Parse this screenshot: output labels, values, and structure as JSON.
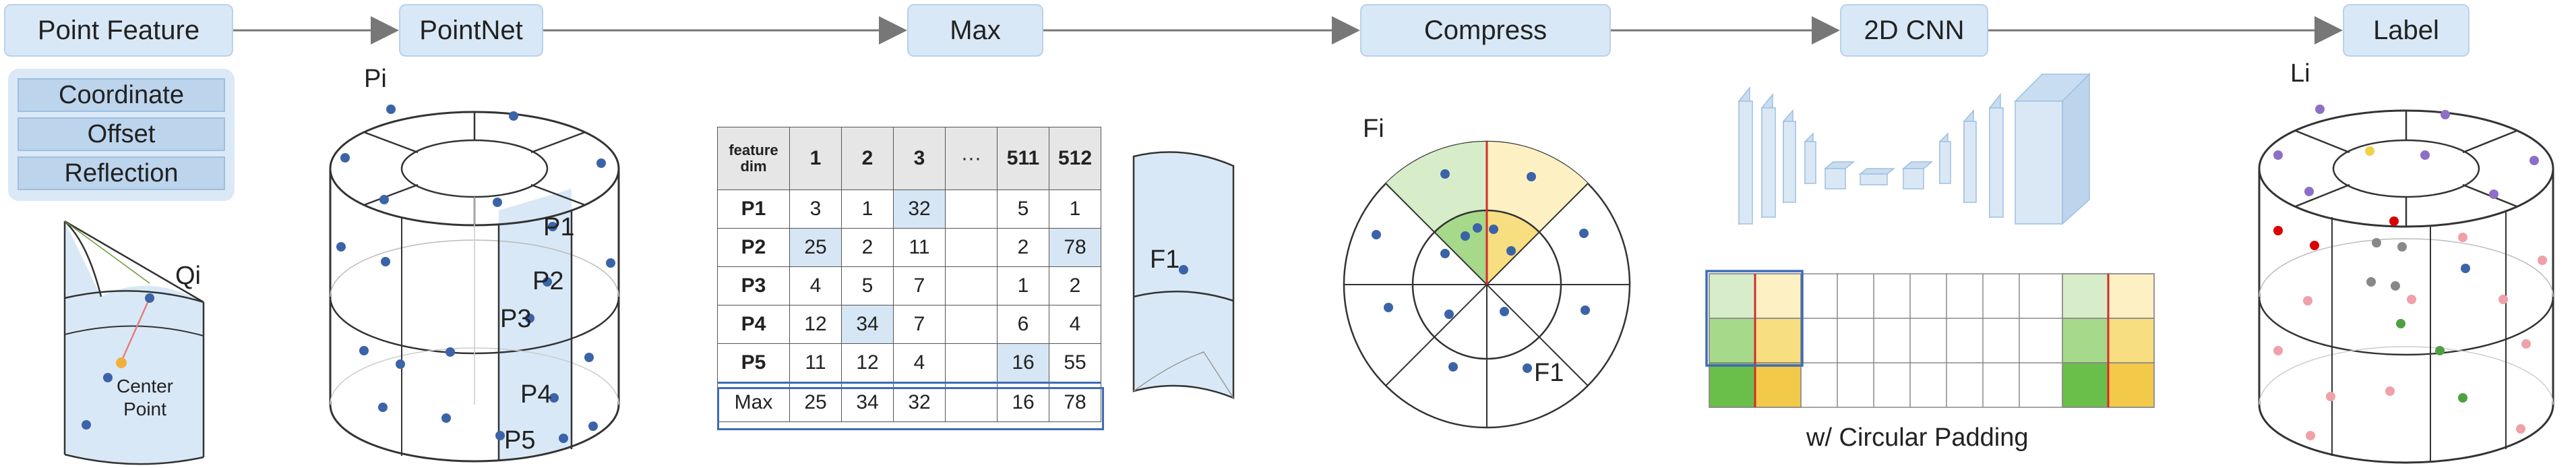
{
  "steps": {
    "point_feature": "Point Feature",
    "pointnet": "PointNet",
    "max": "Max",
    "compress": "Compress",
    "cnn2d": "2D CNN",
    "label": "Label"
  },
  "features": [
    "Coordinate",
    "Offset",
    "Reflection"
  ],
  "labels": {
    "q": "Qi",
    "center_point": "Center Point",
    "p_i": "Pi",
    "p1": "P1",
    "p2": "P2",
    "p3": "P3",
    "p4": "P4",
    "p5": "P5",
    "f1_a": "F1",
    "f_i": "Fi",
    "f1_b": "F1",
    "l_i": "Li",
    "circular_padding": "w/ Circular Padding"
  },
  "table": {
    "header": [
      "feature dim",
      "1",
      "2",
      "3",
      "···",
      "511",
      "512"
    ],
    "rows": [
      {
        "name": "P1",
        "cells": [
          "3",
          "1",
          "32",
          "",
          "5",
          "1"
        ],
        "highlight": [
          2
        ]
      },
      {
        "name": "P2",
        "cells": [
          "25",
          "2",
          "11",
          "",
          "2",
          "78"
        ],
        "highlight": [
          0,
          5
        ]
      },
      {
        "name": "P3",
        "cells": [
          "4",
          "5",
          "7",
          "",
          "1",
          "2"
        ],
        "highlight": []
      },
      {
        "name": "P4",
        "cells": [
          "12",
          "34",
          "7",
          "",
          "6",
          "4"
        ],
        "highlight": [
          1
        ]
      },
      {
        "name": "P5",
        "cells": [
          "11",
          "12",
          "4",
          "",
          "16",
          "55"
        ],
        "highlight": [
          4
        ]
      }
    ],
    "max_row": {
      "name": "Max",
      "cells": [
        "25",
        "34",
        "32",
        "",
        "16",
        "78"
      ]
    }
  },
  "colors": {
    "box_fill": "#d9e8f6",
    "point_blue": "#3b63a8",
    "highlight_cell": "#d6e6f4",
    "max_border": "#3e6bb5",
    "sector_green": "#d7edc9",
    "sector_yellow": "#fdf1c3",
    "red_line": "#d62b2b"
  }
}
